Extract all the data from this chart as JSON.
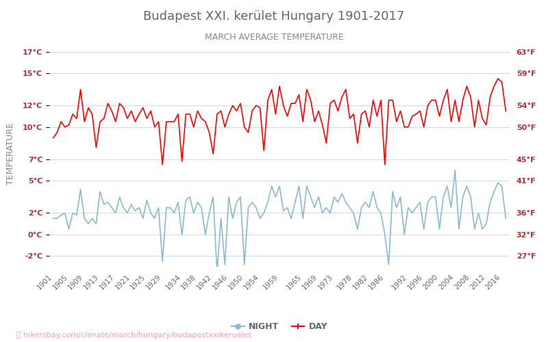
{
  "title": "Budapest XXI. kerület Hungary 1901-2017",
  "subtitle": "MARCH AVERAGE TEMPERATURE",
  "ylabel": "TEMPERATURE",
  "watermark": "⛳ hikersbay.com/climate/march/hungary/budapestxxikeruelet",
  "legend_night": "NIGHT",
  "legend_day": "DAY",
  "title_color": "#666666",
  "subtitle_color": "#888888",
  "ylabel_color": "#888888",
  "ytick_color": "#aa3333",
  "xtick_color": "#666677",
  "bg_color": "#ffffff",
  "grid_color": "#ccddee",
  "day_color": "#ff0000",
  "night_color": "#88bbcc",
  "watermark_color": "#ff99bb",
  "ylim_min": -3,
  "ylim_max": 18,
  "yticks_c": [
    -2,
    0,
    2,
    5,
    7,
    10,
    12,
    15,
    17
  ],
  "yticks_f": [
    27,
    32,
    36,
    41,
    45,
    50,
    54,
    59,
    63
  ],
  "years": [
    1901,
    1902,
    1903,
    1904,
    1905,
    1906,
    1907,
    1908,
    1909,
    1910,
    1911,
    1912,
    1913,
    1914,
    1915,
    1916,
    1917,
    1918,
    1919,
    1920,
    1921,
    1922,
    1923,
    1924,
    1925,
    1926,
    1927,
    1928,
    1929,
    1930,
    1931,
    1932,
    1933,
    1934,
    1935,
    1936,
    1937,
    1938,
    1939,
    1940,
    1941,
    1942,
    1943,
    1944,
    1945,
    1946,
    1947,
    1948,
    1949,
    1950,
    1951,
    1952,
    1953,
    1954,
    1955,
    1956,
    1957,
    1958,
    1959,
    1960,
    1961,
    1962,
    1963,
    1964,
    1965,
    1966,
    1967,
    1968,
    1969,
    1970,
    1971,
    1972,
    1973,
    1974,
    1975,
    1976,
    1977,
    1978,
    1979,
    1980,
    1981,
    1982,
    1983,
    1984,
    1985,
    1986,
    1987,
    1988,
    1989,
    1990,
    1991,
    1992,
    1993,
    1994,
    1995,
    1996,
    1997,
    1998,
    1999,
    2000,
    2001,
    2002,
    2003,
    2004,
    2005,
    2006,
    2007,
    2008,
    2009,
    2010,
    2011,
    2012,
    2013,
    2014,
    2015,
    2016,
    2017
  ],
  "day_temps": [
    9.0,
    9.5,
    10.5,
    10.0,
    10.2,
    11.2,
    10.8,
    13.5,
    10.5,
    11.8,
    11.2,
    8.1,
    10.5,
    10.8,
    12.2,
    11.5,
    10.5,
    12.2,
    11.8,
    10.8,
    11.5,
    10.5,
    11.2,
    11.8,
    10.8,
    11.5,
    10.0,
    10.5,
    6.5,
    10.5,
    10.5,
    10.5,
    11.2,
    6.8,
    11.2,
    11.2,
    10.0,
    11.5,
    10.8,
    10.5,
    9.5,
    7.5,
    11.2,
    11.5,
    10.0,
    11.2,
    12.0,
    11.5,
    12.2,
    10.0,
    9.5,
    11.5,
    12.0,
    11.8,
    7.8,
    12.5,
    13.5,
    11.2,
    13.8,
    12.0,
    11.0,
    12.2,
    12.2,
    13.0,
    10.5,
    13.5,
    12.5,
    10.5,
    11.5,
    10.2,
    8.5,
    12.2,
    12.5,
    11.5,
    12.8,
    13.5,
    10.8,
    11.2,
    8.5,
    11.2,
    11.5,
    10.0,
    12.5,
    11.0,
    12.5,
    6.5,
    12.5,
    12.5,
    10.5,
    11.5,
    10.0,
    10.0,
    11.0,
    11.2,
    11.5,
    10.0,
    12.0,
    12.5,
    12.5,
    11.0,
    12.5,
    13.5,
    10.5,
    12.5,
    10.5,
    12.5,
    13.8,
    12.8,
    10.0,
    12.5,
    10.8,
    10.2,
    12.8,
    13.8,
    14.5,
    14.2,
    11.5
  ],
  "night_temps": [
    1.5,
    1.5,
    1.8,
    2.0,
    0.5,
    2.0,
    1.8,
    4.2,
    1.5,
    1.0,
    1.5,
    1.0,
    4.0,
    2.8,
    3.0,
    2.5,
    2.0,
    3.5,
    2.5,
    2.0,
    2.8,
    2.2,
    2.5,
    1.5,
    3.2,
    2.0,
    1.5,
    2.5,
    -2.5,
    2.5,
    2.5,
    2.0,
    3.0,
    0.0,
    3.2,
    3.5,
    2.0,
    3.0,
    2.5,
    0.0,
    2.0,
    3.5,
    -3.5,
    1.5,
    -2.8,
    3.5,
    1.5,
    3.0,
    3.5,
    -2.8,
    2.5,
    3.0,
    2.5,
    1.5,
    2.0,
    3.0,
    4.5,
    3.5,
    4.5,
    2.2,
    2.5,
    1.5,
    3.0,
    4.5,
    1.5,
    4.5,
    3.5,
    2.5,
    3.5,
    2.0,
    2.5,
    2.0,
    3.5,
    3.0,
    3.8,
    3.0,
    2.5,
    2.0,
    0.5,
    2.5,
    3.0,
    2.5,
    4.0,
    2.5,
    2.0,
    0.0,
    -2.8,
    4.0,
    2.5,
    3.5,
    0.0,
    2.5,
    2.0,
    2.5,
    3.0,
    0.5,
    3.0,
    3.5,
    3.5,
    0.5,
    3.5,
    4.5,
    2.5,
    6.0,
    0.5,
    3.5,
    4.5,
    3.5,
    0.5,
    2.0,
    0.5,
    1.0,
    3.0,
    4.0,
    4.8,
    4.5,
    1.5
  ]
}
